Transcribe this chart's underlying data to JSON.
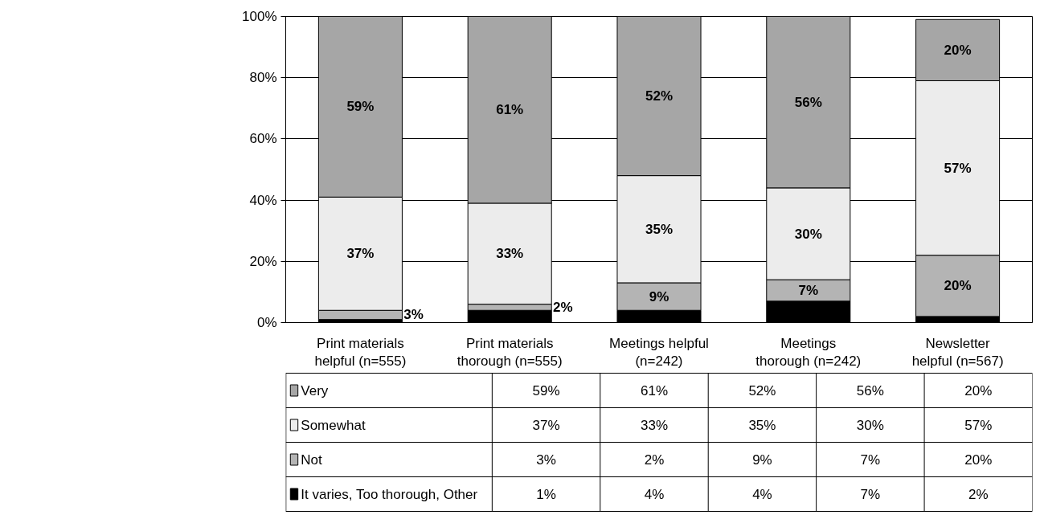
{
  "chart_data": {
    "type": "bar",
    "stacked": true,
    "categories": [
      "Print materials helpful (n=555)",
      "Print materials thorough (n=555)",
      "Meetings helpful (n=242)",
      "Meetings thorough (n=242)",
      "Newsletter helpful (n=567)"
    ],
    "series": [
      {
        "name": "It varies, Too thorough, Other",
        "color": "#000000",
        "values": [
          1,
          4,
          4,
          7,
          2
        ]
      },
      {
        "name": "Not",
        "color": "#b4b4b4",
        "values": [
          3,
          2,
          9,
          7,
          20
        ],
        "value_labels": [
          "3%",
          "2%",
          "9%",
          "7%",
          "20%"
        ]
      },
      {
        "name": "Somewhat",
        "color": "#ececec",
        "values": [
          37,
          33,
          35,
          30,
          57
        ],
        "value_labels": [
          "37%",
          "33%",
          "35%",
          "30%",
          "57%"
        ]
      },
      {
        "name": "Very",
        "color": "#a6a6a6",
        "values": [
          59,
          61,
          52,
          56,
          20
        ],
        "value_labels": [
          "59%",
          "61%",
          "52%",
          "56%",
          "20%"
        ]
      }
    ],
    "annotations": [
      "1%",
      "4%",
      "4%",
      "7%",
      "2%"
    ],
    "ylim": [
      0,
      100
    ],
    "yticks": [
      {
        "value": 0,
        "label": "0%"
      },
      {
        "value": 20,
        "label": "20%"
      },
      {
        "value": 40,
        "label": "40%"
      },
      {
        "value": 60,
        "label": "60%"
      },
      {
        "value": 80,
        "label": "80%"
      },
      {
        "value": 100,
        "label": "100%"
      }
    ],
    "grid": "y",
    "legend": "bottom left"
  }
}
